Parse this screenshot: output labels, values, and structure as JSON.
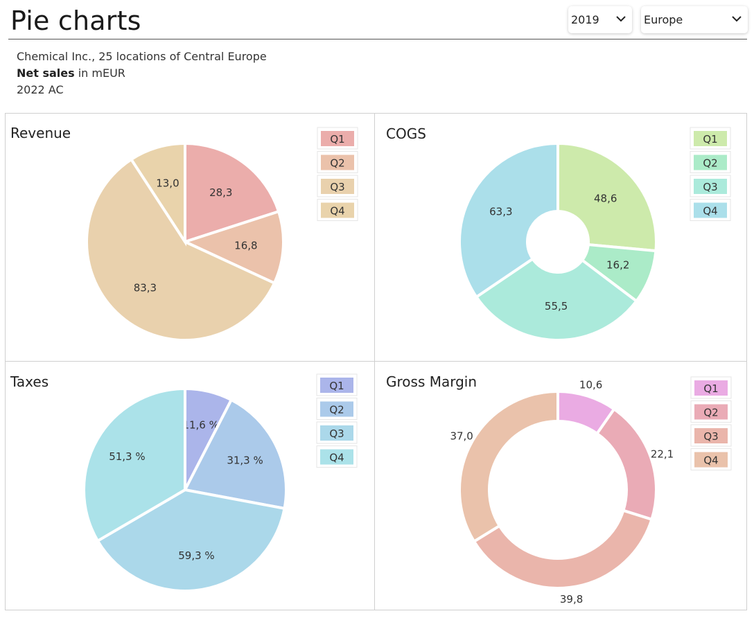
{
  "header": {
    "title": "Pie charts",
    "year_select": {
      "value": "2019"
    },
    "region_select": {
      "value": "Europe"
    }
  },
  "subtitle": {
    "company": "Chemical Inc., 25 locations of Central Europe",
    "measure_bold": "Net sales",
    "measure_rest": " in mEUR",
    "scenario": "2022 AC"
  },
  "chart_data": [
    {
      "type": "pie",
      "title": "Revenue",
      "categories": [
        "Q1",
        "Q2",
        "Q3",
        "Q4"
      ],
      "values": [
        28.3,
        16.8,
        83.3,
        13.0
      ],
      "labels": [
        "28,3",
        "16,8",
        "83,3",
        "13,0"
      ],
      "colors": [
        "#ebadab",
        "#ebc2ab",
        "#e9d1ad",
        "#e9d3ab"
      ],
      "donut": false,
      "legend": "top-right"
    },
    {
      "type": "pie",
      "title": "COGS",
      "categories": [
        "Q1",
        "Q2",
        "Q3",
        "Q4"
      ],
      "values": [
        48.6,
        16.2,
        55.5,
        63.3
      ],
      "labels": [
        "48,6",
        "16,2",
        "55,5",
        "63,3"
      ],
      "colors": [
        "#cdeaab",
        "#abebc8",
        "#abeadb",
        "#abdfea"
      ],
      "donut": true,
      "legend": "top-right"
    },
    {
      "type": "pie",
      "title": "Taxes",
      "categories": [
        "Q1",
        "Q2",
        "Q3",
        "Q4"
      ],
      "values": [
        11.6,
        31.3,
        59.3,
        51.3
      ],
      "labels": [
        "11,6 %",
        "31,3 %",
        "59,3 %",
        "51,3 %"
      ],
      "colors": [
        "#abb5ea",
        "#abcaea",
        "#abd8ea",
        "#abe2e9"
      ],
      "donut": false,
      "legend": "top-right"
    },
    {
      "type": "pie",
      "title": "Gross Margin",
      "categories": [
        "Q1",
        "Q2",
        "Q3",
        "Q4"
      ],
      "values": [
        10.6,
        22.1,
        39.8,
        37.0
      ],
      "labels": [
        "10,6",
        "22,1",
        "39,8",
        "37,0"
      ],
      "colors": [
        "#eaabe3",
        "#eaabb6",
        "#eab5ab",
        "#eac2ab"
      ],
      "donut": true,
      "legend": "top-right"
    }
  ]
}
